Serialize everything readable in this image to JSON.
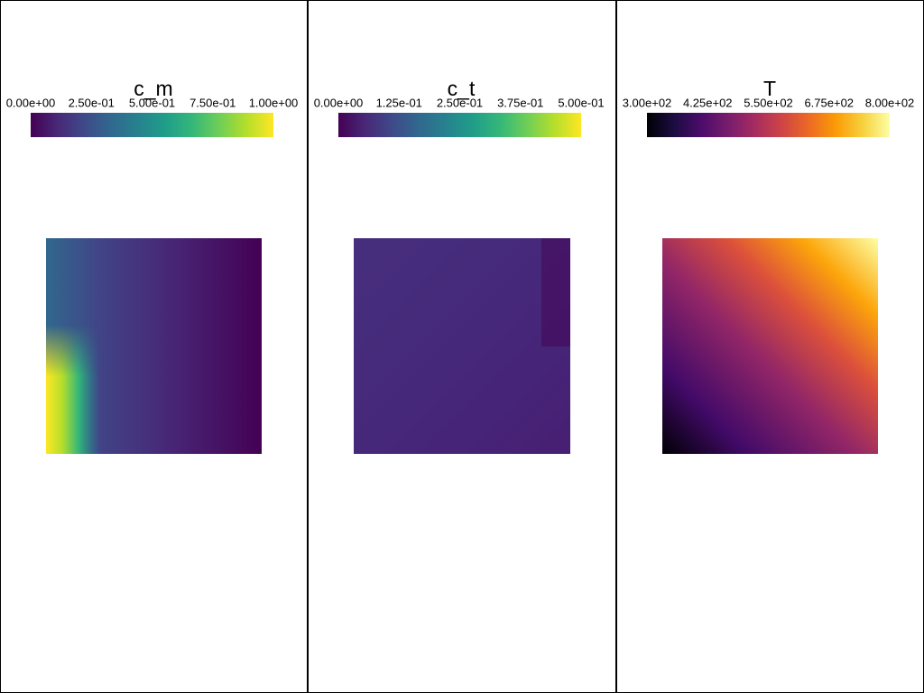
{
  "panels": [
    {
      "title": "c_m",
      "colorbar": {
        "colormap": "viridis",
        "range": [
          0,
          1
        ],
        "ticks": [
          {
            "value": 0,
            "label": "0.00e+00"
          },
          {
            "value": 0.25,
            "label": "2.50e-01"
          },
          {
            "value": 0.5,
            "label": "5.00e-01"
          },
          {
            "value": 0.75,
            "label": "7.50e-01"
          },
          {
            "value": 1,
            "label": "1.00e+00"
          }
        ]
      }
    },
    {
      "title": "c_t",
      "colorbar": {
        "colormap": "viridis",
        "range": [
          0,
          0.5
        ],
        "ticks": [
          {
            "value": 0,
            "label": "0.00e+00"
          },
          {
            "value": 0.125,
            "label": "1.25e-01"
          },
          {
            "value": 0.25,
            "label": "2.50e-01"
          },
          {
            "value": 0.375,
            "label": "3.75e-01"
          },
          {
            "value": 0.5,
            "label": "5.00e-01"
          }
        ]
      }
    },
    {
      "title": "T",
      "colorbar": {
        "colormap": "inferno",
        "range": [
          300,
          800
        ],
        "ticks": [
          {
            "value": 300,
            "label": "3.00e+02"
          },
          {
            "value": 425,
            "label": "4.25e+02"
          },
          {
            "value": 550,
            "label": "5.50e+02"
          },
          {
            "value": 675,
            "label": "6.75e+02"
          },
          {
            "value": 800,
            "label": "8.00e+02"
          }
        ]
      }
    }
  ]
}
